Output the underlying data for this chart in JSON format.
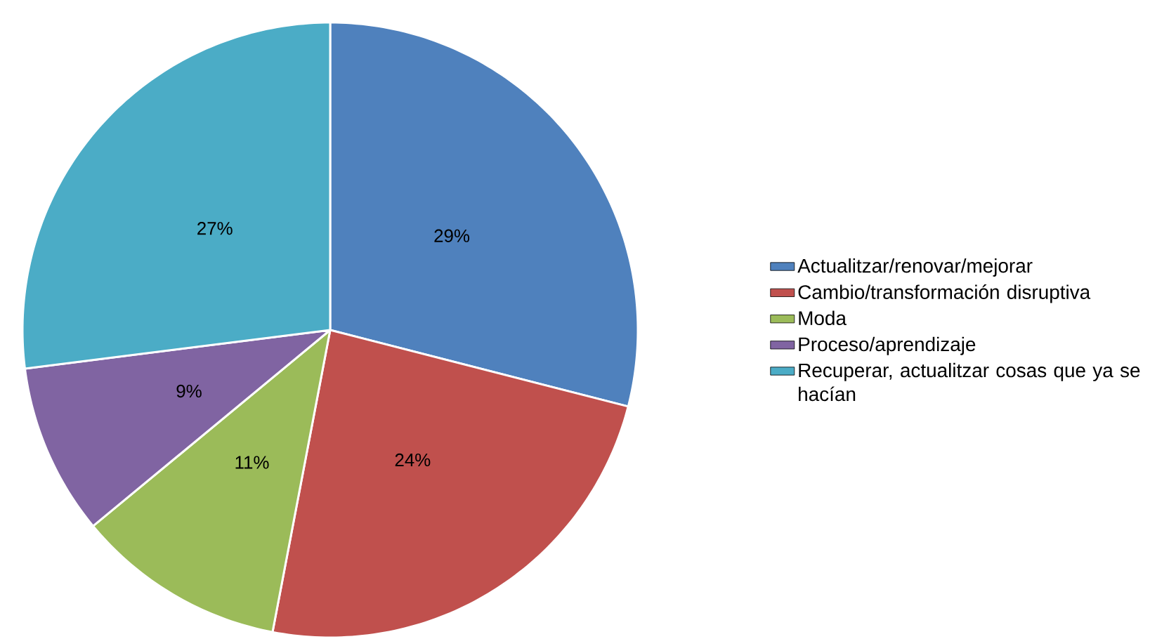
{
  "chart_data": {
    "type": "pie",
    "categories": [
      "Actualitzar/renovar/mejorar",
      "Cambio/transformación disruptiva",
      "Moda",
      "Proceso/aprendizaje",
      "Recuperar, actualitzar cosas que ya se hacían"
    ],
    "values": [
      29,
      24,
      11,
      9,
      27
    ],
    "colors": [
      "#4f81bd",
      "#c0504d",
      "#9bbb59",
      "#8064a2",
      "#4bacc6"
    ],
    "value_labels": [
      "29%",
      "24%",
      "11%",
      "9%",
      "27%"
    ],
    "legend": "right"
  }
}
